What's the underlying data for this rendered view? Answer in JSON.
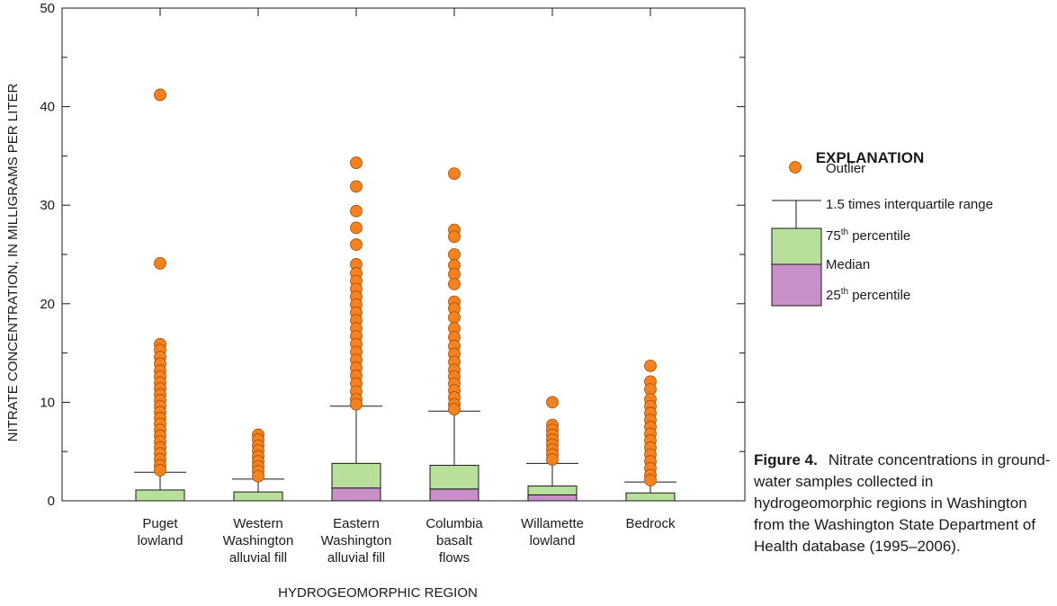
{
  "chart_data": {
    "type": "box",
    "ylabel": "NITRATE CONCENTRATION, IN MILLIGRAMS PER LITER",
    "xlabel": "HYDROGEOMORPHIC REGION",
    "ylim": [
      0,
      50
    ],
    "yticks": [
      0,
      10,
      20,
      30,
      40,
      50
    ],
    "grid": false,
    "outlier_color": "#f5821f",
    "upper_box_color": "#b9e09a",
    "lower_box_color": "#c98fc9",
    "categories": [
      {
        "label": [
          "Puget",
          "lowland"
        ],
        "q1": 0.0,
        "median": 0.0,
        "q3": 1.1,
        "whisker_high": 2.9,
        "outliers": [
          41.2,
          24.1,
          15.9,
          15.3,
          14.6,
          13.9,
          13.2,
          12.6,
          12.0,
          11.4,
          10.8,
          10.2,
          9.6,
          9.0,
          8.4,
          7.8,
          7.2,
          6.6,
          6.0,
          5.4,
          4.8,
          4.2,
          3.6,
          3.1
        ]
      },
      {
        "label": [
          "Western",
          "Washington",
          "alluvial fill"
        ],
        "q1": 0.0,
        "median": 0.0,
        "q3": 0.9,
        "whisker_high": 2.2,
        "outliers": [
          6.7,
          6.2,
          5.6,
          5.1,
          4.5,
          4.0,
          3.5,
          3.0,
          2.5
        ]
      },
      {
        "label": [
          "Eastern",
          "Washington",
          "alluvial fill"
        ],
        "q1": 0.0,
        "median": 1.3,
        "q3": 3.8,
        "whisker_high": 9.6,
        "outliers": [
          34.3,
          31.9,
          29.4,
          27.7,
          26.0,
          24.0,
          23.1,
          22.3,
          21.5,
          20.7,
          19.9,
          19.1,
          18.3,
          17.5,
          16.7,
          15.9,
          15.1,
          14.3,
          13.5,
          12.7,
          11.9,
          11.1,
          10.3,
          9.8
        ]
      },
      {
        "label": [
          "Columbia",
          "basalt",
          "flows"
        ],
        "q1": 0.0,
        "median": 1.2,
        "q3": 3.6,
        "whisker_high": 9.1,
        "outliers": [
          33.2,
          27.5,
          26.8,
          25.0,
          23.9,
          23.0,
          22.0,
          20.2,
          19.5,
          18.6,
          17.5,
          16.6,
          15.7,
          14.9,
          14.1,
          13.3,
          12.6,
          11.9,
          11.2,
          10.5,
          9.8,
          9.3
        ]
      },
      {
        "label": [
          "Willamette",
          "lowland"
        ],
        "q1": 0.0,
        "median": 0.6,
        "q3": 1.5,
        "whisker_high": 3.8,
        "outliers": [
          10.0,
          7.7,
          7.2,
          6.7,
          6.2,
          5.7,
          5.2,
          4.7,
          4.2
        ]
      },
      {
        "label": [
          "Bedrock"
        ],
        "q1": 0.0,
        "median": 0.0,
        "q3": 0.8,
        "whisker_high": 1.9,
        "outliers": [
          13.7,
          12.1,
          11.3,
          10.3,
          9.6,
          8.9,
          8.2,
          7.5,
          6.8,
          6.1,
          5.4,
          4.7,
          4.0,
          3.3,
          2.6,
          2.1
        ]
      }
    ]
  },
  "legend": {
    "title": "EXPLANATION",
    "outlier": "Outlier",
    "whisker": "1.5 times interquartile range",
    "p75_num": "75",
    "p75_sup": "th",
    "p75_text": " percentile",
    "median": "Median",
    "p25_num": "25",
    "p25_sup": "th",
    "p25_text": " percentile"
  },
  "caption": {
    "label": "Figure 4.",
    "text": "Nitrate concentrations in ground-water samples collected in hydrogeomorphic regions in Washington from the Washington State Department of Health database (1995–2006)."
  }
}
